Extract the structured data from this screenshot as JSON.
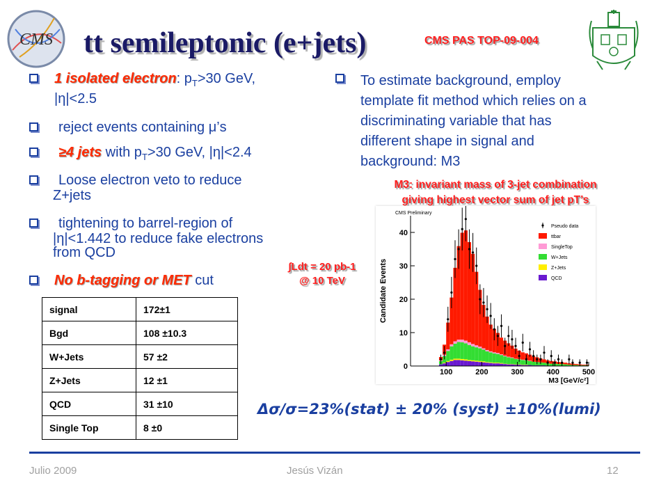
{
  "title": "tt semileptonic (e+jets)",
  "pas_ref": "CMS PAS TOP-09-004",
  "left_bullets": {
    "b1": {
      "highlight": "1 isolated electron",
      "text_a": ": p",
      "sub": "T",
      "text_b": ">30 GeV,",
      "line2": "|η|<2.5"
    },
    "b2": {
      "text_a": "reject events containing ",
      "mu": "μ",
      "text_b": "’s"
    },
    "b3": {
      "highlight": "≥4 jets",
      "text_a": " with p",
      "sub": "T",
      "text_b": ">30 GeV, |η|<2.4"
    },
    "b4": {
      "line1": "Loose electron veto to reduce",
      "line2": "Z+jets"
    },
    "b5": {
      "line1": "tightening to barrel-region of",
      "line2": "|η|<1.442 to reduce fake electrons",
      "line3": "from QCD"
    },
    "b6": {
      "highlight": "No b-tagging or MET",
      "text": " cut"
    }
  },
  "right_bullet": {
    "line1": "To estimate background, employ",
    "line2": "template fit method which relies on a",
    "line3": "discriminating variable that has",
    "line4": "different shape in signal and",
    "line5": "background: M3"
  },
  "m3_caption": {
    "line1": "M3: invariant mass of 3-jet combination",
    "line2": "giving highest vector sum of jet pT’s"
  },
  "lumi": {
    "line1": "∫Ldt  = 20 pb-1",
    "line2": "@ 10 TeV"
  },
  "yields_table": [
    {
      "label": "signal",
      "value": "172±1"
    },
    {
      "label": "Bgd",
      "value": "108 ±10.3"
    },
    {
      "label": "W+Jets",
      "value": "57 ±2"
    },
    {
      "label": "Z+Jets",
      "value": "12 ±1"
    },
    {
      "label": "QCD",
      "value": "31 ±10"
    },
    {
      "label": "Single Top",
      "value": "8 ±0"
    }
  ],
  "plot": {
    "tag": "CMS Preliminary",
    "ylabel": "Candidate Events",
    "xlabel": "M3 [GeV/c²]",
    "legend": [
      {
        "name": "Pseudo data",
        "color": "#000000"
      },
      {
        "name": "ttbar",
        "color": "#ff1a00"
      },
      {
        "name": "SingleTop",
        "color": "#ff9ad5"
      },
      {
        "name": "W+Jets",
        "color": "#33dd33"
      },
      {
        "name": "Z+Jets",
        "color": "#ffee00"
      },
      {
        "name": "QCD",
        "color": "#6a1ad0"
      }
    ],
    "x_ticks": [
      "100",
      "200",
      "300",
      "400",
      "500"
    ],
    "y_ticks": [
      "0",
      "10",
      "20",
      "30",
      "40"
    ]
  },
  "chart_data": {
    "type": "bar",
    "xlabel": "M3 [GeV/c²]",
    "ylabel": "Candidate Events",
    "xlim": [
      0,
      500
    ],
    "ylim": [
      0,
      45
    ],
    "bin_width": 10,
    "x": [
      65,
      75,
      85,
      95,
      105,
      115,
      125,
      135,
      145,
      155,
      165,
      175,
      185,
      195,
      205,
      215,
      225,
      235,
      245,
      255,
      265,
      275,
      285,
      295,
      305,
      315,
      325,
      335,
      345,
      355,
      365,
      375,
      385,
      395,
      405,
      415,
      425,
      435,
      445,
      455,
      465,
      475,
      485,
      495
    ],
    "series": [
      {
        "name": "QCD",
        "values": [
          0,
          0,
          0.5,
          0.8,
          1.2,
          1.5,
          1.8,
          1.8,
          1.7,
          1.6,
          1.5,
          1.4,
          1.3,
          1.2,
          1.1,
          1.0,
          0.9,
          0.8,
          0.8,
          0.7,
          0.6,
          0.5,
          0.5,
          0.4,
          0.4,
          0.3,
          0.3,
          0.3,
          0.2,
          0.2,
          0.2,
          0.2,
          0.1,
          0.1,
          0.1,
          0.1,
          0.1,
          0.1,
          0,
          0,
          0,
          0,
          0,
          0
        ]
      },
      {
        "name": "Z+Jets",
        "values": [
          0,
          0,
          0,
          0.2,
          0.3,
          0.4,
          0.4,
          0.4,
          0.4,
          0.4,
          0.3,
          0.3,
          0.3,
          0.3,
          0.3,
          0.2,
          0.2,
          0.2,
          0.2,
          0.2,
          0.1,
          0.1,
          0.1,
          0.1,
          0.1,
          0.1,
          0.1,
          0,
          0,
          0,
          0,
          0,
          0,
          0,
          0,
          0,
          0,
          0,
          0,
          0,
          0,
          0,
          0,
          0
        ]
      },
      {
        "name": "W+Jets",
        "values": [
          0,
          0,
          1,
          2,
          3,
          4,
          4.5,
          5,
          5,
          4.8,
          4.5,
          4.2,
          4,
          3.8,
          3.5,
          3.2,
          3,
          2.8,
          2.6,
          2.4,
          2.2,
          2,
          1.8,
          1.6,
          1.5,
          1.4,
          1.3,
          1.2,
          1.1,
          1.0,
          0.9,
          0.8,
          0.7,
          0.6,
          0.6,
          0.5,
          0.5,
          0.4,
          0.4,
          0.3,
          0.3,
          0.2,
          0.2,
          0.2
        ]
      },
      {
        "name": "SingleTop",
        "values": [
          0,
          0,
          0.2,
          0.4,
          0.5,
          0.6,
          0.7,
          0.7,
          0.8,
          0.8,
          0.8,
          0.7,
          0.6,
          0.5,
          0.4,
          0.4,
          0.3,
          0.3,
          0.3,
          0.2,
          0.2,
          0.2,
          0.2,
          0.1,
          0.1,
          0.1,
          0.1,
          0.1,
          0,
          0,
          0,
          0,
          0,
          0,
          0,
          0,
          0,
          0,
          0,
          0,
          0,
          0,
          0,
          0
        ]
      },
      {
        "name": "ttbar",
        "values": [
          0,
          0,
          1,
          3,
          8,
          14,
          22,
          28,
          32,
          33,
          30,
          27,
          22,
          17,
          13,
          10,
          8,
          7,
          6,
          5,
          4.5,
          4,
          3.5,
          3,
          2.5,
          2.2,
          2,
          1.8,
          1.6,
          1.4,
          1.2,
          1,
          0.9,
          0.8,
          0.7,
          0.6,
          0.5,
          0.5,
          0.4,
          0.4,
          0.3,
          0.3,
          0.2,
          0.2
        ]
      },
      {
        "name": "Pseudo data",
        "values": [
          0,
          0,
          2,
          4,
          14,
          22,
          32,
          35,
          41,
          44,
          35,
          34,
          30,
          20,
          19,
          17,
          15,
          11,
          9,
          12,
          6,
          9,
          8,
          6,
          3,
          7,
          2,
          5,
          3,
          2,
          2,
          4,
          1,
          3,
          1,
          2,
          1,
          0,
          2,
          1,
          0,
          1,
          0,
          1
        ]
      }
    ]
  },
  "result": "Δσ/σ=23%(stat) ± 20% (syst) ±10%(lumi)",
  "footer": {
    "date": "Julio 2009",
    "author": "Jesús Vizán",
    "page": "12"
  }
}
